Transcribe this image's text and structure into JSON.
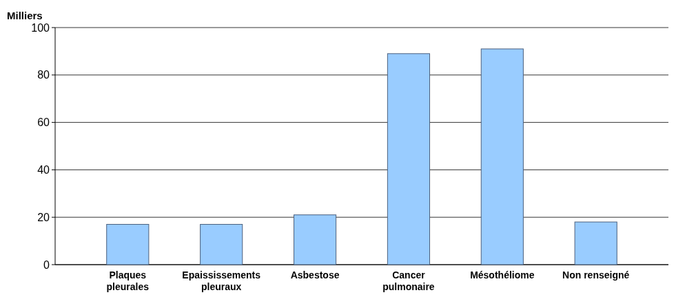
{
  "chart_data": {
    "type": "bar",
    "ylabel": "Milliers",
    "categories": [
      "Plaques pleurales",
      "Epaississements pleuraux",
      "Asbestose",
      "Cancer pulmonaire",
      "Mésothéliome",
      "Non renseigné"
    ],
    "values": [
      17,
      17,
      21,
      89,
      91,
      18
    ],
    "color": "#99ccff",
    "ylim": [
      0,
      100
    ],
    "yticks": [
      0,
      20,
      40,
      60,
      80,
      100
    ],
    "grid": "y"
  }
}
